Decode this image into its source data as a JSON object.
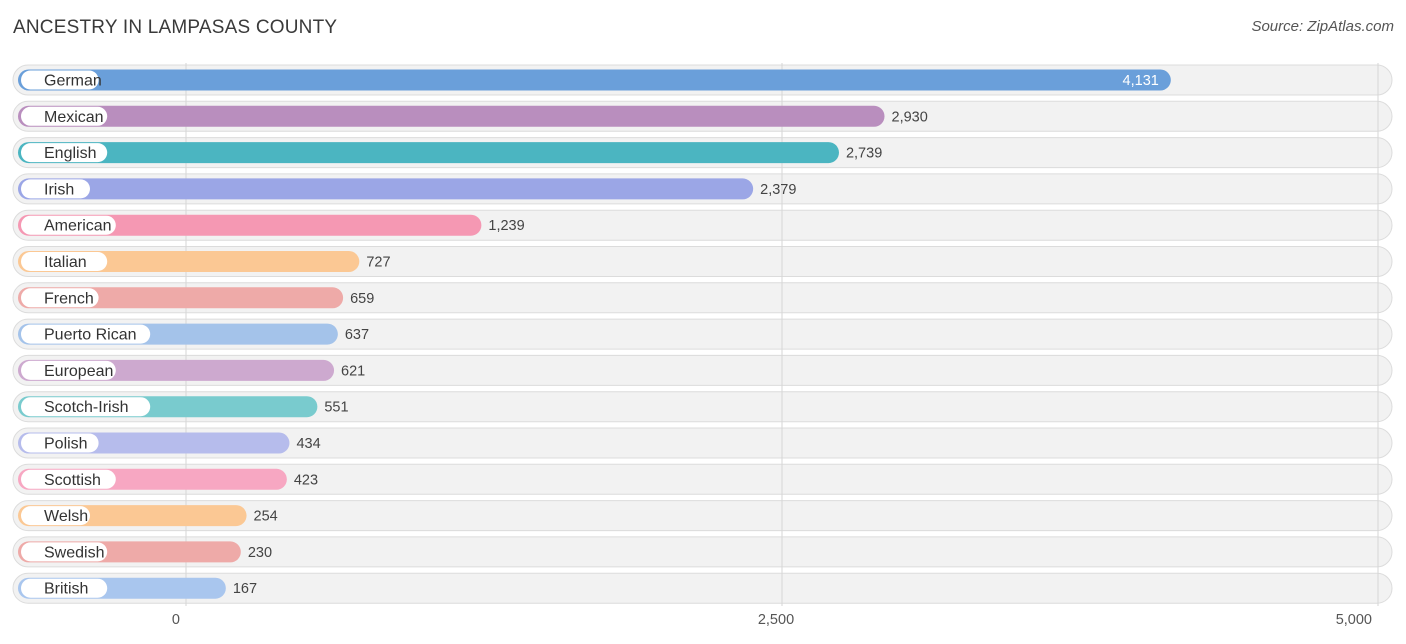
{
  "header": {
    "title": "ANCESTRY IN LAMPASAS COUNTY",
    "source": "Source: ZipAtlas.com"
  },
  "chart_data": {
    "type": "bar",
    "orientation": "horizontal",
    "title": "ANCESTRY IN LAMPASAS COUNTY",
    "xlim": [
      0,
      5000
    ],
    "ticks": [
      {
        "value": 0,
        "label": "0"
      },
      {
        "value": 2500,
        "label": "2,500"
      },
      {
        "value": 5000,
        "label": "5,000"
      }
    ],
    "grid": true,
    "categories": [
      "German",
      "Mexican",
      "English",
      "Irish",
      "American",
      "Italian",
      "French",
      "Puerto Rican",
      "European",
      "Scotch-Irish",
      "Polish",
      "Scottish",
      "Welsh",
      "Swedish",
      "British"
    ],
    "values": [
      4131,
      2930,
      2739,
      2379,
      1239,
      727,
      659,
      637,
      621,
      551,
      434,
      423,
      254,
      230,
      167
    ],
    "value_labels": [
      "4,131",
      "2,930",
      "2,739",
      "2,379",
      "1,239",
      "727",
      "659",
      "637",
      "621",
      "551",
      "434",
      "423",
      "254",
      "230",
      "167"
    ],
    "colors": [
      "#6a9fda",
      "#b98ebe",
      "#4bb5c1",
      "#9ba6e6",
      "#f598b3",
      "#fbc894",
      "#eeaaa8",
      "#a4c3ea",
      "#cda9cf",
      "#79cbce",
      "#b6bcec",
      "#f7a7c2",
      "#fbc894",
      "#eeaaa8",
      "#a9c6ee"
    ]
  }
}
